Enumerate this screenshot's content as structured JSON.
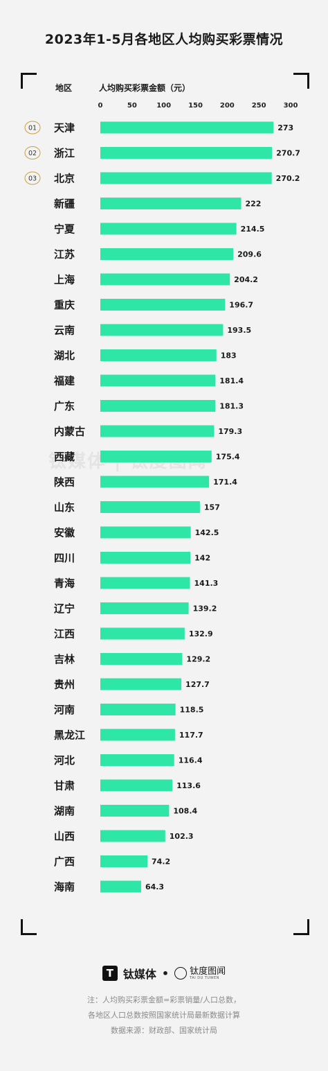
{
  "title": "2023年1-5月各地区人均购买彩票情况",
  "headers": {
    "region": "地区",
    "metric": "人均购买彩票金额（元）"
  },
  "chart_data": {
    "type": "bar",
    "orientation": "horizontal",
    "xlim": [
      0,
      300
    ],
    "ticks": [
      0,
      50,
      100,
      150,
      200,
      250,
      300
    ],
    "bar_color": "#2ee6a5",
    "categories": [
      "天津",
      "浙江",
      "北京",
      "新疆",
      "宁夏",
      "江苏",
      "上海",
      "重庆",
      "云南",
      "湖北",
      "福建",
      "广东",
      "内蒙古",
      "西藏",
      "陕西",
      "山东",
      "安徽",
      "四川",
      "青海",
      "辽宁",
      "江西",
      "吉林",
      "贵州",
      "河南",
      "黑龙江",
      "河北",
      "甘肃",
      "湖南",
      "山西",
      "广西",
      "海南"
    ],
    "values": [
      273,
      270.7,
      270.2,
      222,
      214.5,
      209.6,
      204.2,
      196.7,
      193.5,
      183,
      181.4,
      181.3,
      179.3,
      175.4,
      171.4,
      157,
      142.5,
      142,
      141.3,
      139.2,
      132.9,
      129.2,
      127.7,
      118.5,
      117.7,
      116.4,
      113.6,
      108.4,
      102.3,
      74.2,
      64.3
    ],
    "value_labels": [
      "273",
      "270.7",
      "270.2",
      "222",
      "214.5",
      "209.6",
      "204.2",
      "196.7",
      "193.5",
      "183",
      "181.4",
      "181.3",
      "179.3",
      "175.4",
      "171.4",
      "157",
      "142.5",
      "142",
      "141.3",
      "139.2",
      "132.9",
      "129.2",
      "127.7",
      "118.5",
      "117.7",
      "116.4",
      "113.6",
      "108.4",
      "102.3",
      "74.2",
      "64.3"
    ],
    "rank_badges": [
      "01",
      "02",
      "03"
    ]
  },
  "watermark": "钛媒体 | 钛度图闻",
  "footer": {
    "logo1": "钛媒体",
    "logo1_icon": "T",
    "separator": "•",
    "logo2": "钛度图闻",
    "logo2_sub": "TAI DU TUWEN",
    "note_lines": [
      "注：人均购买彩票金额=彩票销量/人口总数，",
      "各地区人口总数按照国家统计局最新数据计算",
      "数据来源：财政部、国家统计局"
    ]
  }
}
